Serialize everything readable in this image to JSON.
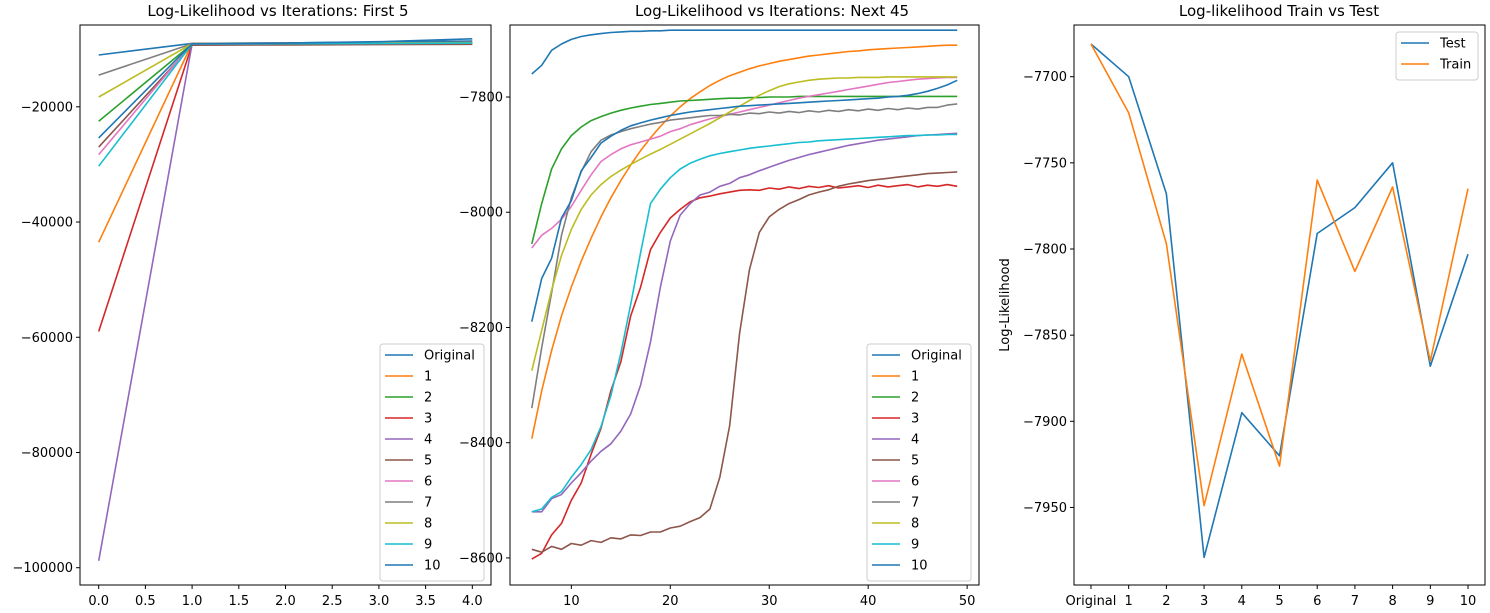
{
  "chart_data": [
    {
      "type": "line",
      "title": "Log-Likelihood vs Iterations: First 5",
      "xlabel": "",
      "ylabel": "",
      "xlim": [
        -0.2,
        4.2
      ],
      "ylim": [
        -103000,
        -5800
      ],
      "xticks": [
        "0.0",
        "0.5",
        "1.0",
        "1.5",
        "2.0",
        "2.5",
        "3.0",
        "3.5",
        "4.0"
      ],
      "yticks": [
        "-100000",
        "-80000",
        "-60000",
        "-40000",
        "-20000"
      ],
      "legend": "lower-right",
      "x": [
        0,
        1,
        2,
        3,
        4
      ],
      "series": [
        {
          "name": "Original",
          "color": "#1f77b4",
          "values": [
            -11000,
            -9000,
            -8900,
            -8750,
            -8600
          ]
        },
        {
          "name": "1",
          "color": "#ff7f0e",
          "values": [
            -43500,
            -9000,
            -8950,
            -8900,
            -8850
          ]
        },
        {
          "name": "2",
          "color": "#2ca02c",
          "values": [
            -22500,
            -9100,
            -9050,
            -9000,
            -8950
          ]
        },
        {
          "name": "3",
          "color": "#d62728",
          "values": [
            -59000,
            -9200,
            -9150,
            -9100,
            -9050
          ]
        },
        {
          "name": "4",
          "color": "#9467bd",
          "values": [
            -98800,
            -9100,
            -9050,
            -9000,
            -8950
          ]
        },
        {
          "name": "5",
          "color": "#8c564b",
          "values": [
            -27000,
            -9300,
            -9250,
            -9200,
            -9150
          ]
        },
        {
          "name": "6",
          "color": "#e377c2",
          "values": [
            -28300,
            -9100,
            -9050,
            -9000,
            -8950
          ]
        },
        {
          "name": "7",
          "color": "#7f7f7f",
          "values": [
            -14500,
            -9050,
            -9000,
            -8950,
            -8900
          ]
        },
        {
          "name": "8",
          "color": "#bcbd22",
          "values": [
            -18300,
            -9050,
            -9000,
            -8950,
            -8900
          ]
        },
        {
          "name": "9",
          "color": "#17becf",
          "values": [
            -30300,
            -9100,
            -9050,
            -9000,
            -8950
          ]
        },
        {
          "name": "10",
          "color": "#1f77b4",
          "values": [
            -25400,
            -9050,
            -8950,
            -8700,
            -8200
          ]
        }
      ]
    },
    {
      "type": "line",
      "title": "Log-Likelihood vs Iterations: Next 45",
      "xlabel": "",
      "ylabel": "",
      "xlim": [
        3.8,
        51.2
      ],
      "ylim": [
        -8647,
        -7675
      ],
      "xticks": [
        "10",
        "20",
        "30",
        "40",
        "50"
      ],
      "xtick_values": [
        10,
        20,
        30,
        40,
        50
      ],
      "yticks": [
        "-8600",
        "-8400",
        "-8200",
        "-8000",
        "-7800"
      ],
      "ytick_values": [
        -8600,
        -8400,
        -8200,
        -8000,
        -7800
      ],
      "legend": "lower-right",
      "x": [
        6,
        7,
        8,
        9,
        10,
        11,
        12,
        13,
        14,
        15,
        16,
        17,
        18,
        19,
        20,
        21,
        22,
        23,
        24,
        25,
        26,
        27,
        28,
        29,
        30,
        31,
        32,
        33,
        34,
        35,
        36,
        37,
        38,
        39,
        40,
        41,
        42,
        43,
        44,
        45,
        46,
        47,
        48,
        49
      ],
      "series": [
        {
          "name": "Original",
          "color": "#1f77b4",
          "values": [
            -7760,
            -7745,
            -7719,
            -7708,
            -7700,
            -7695,
            -7692,
            -7690,
            -7688,
            -7687,
            -7686,
            -7686,
            -7685,
            -7685,
            -7684,
            -7684,
            -7684,
            -7684,
            -7684,
            -7684,
            -7684,
            -7684,
            -7684,
            -7684,
            -7684,
            -7684,
            -7684,
            -7684,
            -7684,
            -7684,
            -7684,
            -7684,
            -7684,
            -7684,
            -7684,
            -7684,
            -7684,
            -7684,
            -7684,
            -7684,
            -7684,
            -7684,
            -7684,
            -7684
          ]
        },
        {
          "name": "1",
          "color": "#ff7f0e",
          "values": [
            -8393,
            -8310,
            -8240,
            -8180,
            -8130,
            -8085,
            -8045,
            -8008,
            -7975,
            -7945,
            -7918,
            -7893,
            -7871,
            -7851,
            -7833,
            -7817,
            -7803,
            -7791,
            -7780,
            -7771,
            -7763,
            -7757,
            -7751,
            -7746,
            -7742,
            -7738,
            -7735,
            -7732,
            -7729,
            -7727,
            -7725,
            -7723,
            -7721,
            -7720,
            -7718,
            -7717,
            -7716,
            -7715,
            -7714,
            -7713,
            -7712,
            -7711,
            -7710,
            -7710
          ]
        },
        {
          "name": "2",
          "color": "#2ca02c",
          "values": [
            -8055,
            -7985,
            -7925,
            -7890,
            -7867,
            -7852,
            -7841,
            -7834,
            -7828,
            -7823,
            -7819,
            -7816,
            -7813,
            -7811,
            -7809,
            -7807,
            -7806,
            -7805,
            -7804,
            -7803,
            -7802,
            -7802,
            -7801,
            -7801,
            -7800,
            -7800,
            -7800,
            -7799,
            -7799,
            -7799,
            -7799,
            -7799,
            -7799,
            -7799,
            -7799,
            -7799,
            -7799,
            -7799,
            -7799,
            -7799,
            -7799,
            -7799,
            -7799,
            -7799
          ]
        },
        {
          "name": "3",
          "color": "#d62728",
          "values": [
            -8602,
            -8592,
            -8560,
            -8540,
            -8500,
            -8470,
            -8420,
            -8375,
            -8310,
            -8260,
            -8180,
            -8130,
            -8065,
            -8035,
            -8010,
            -7995,
            -7982,
            -7975,
            -7972,
            -7968,
            -7965,
            -7962,
            -7961,
            -7962,
            -7958,
            -7960,
            -7956,
            -7959,
            -7955,
            -7957,
            -7954,
            -7958,
            -7956,
            -7954,
            -7957,
            -7953,
            -7956,
            -7954,
            -7952,
            -7956,
            -7953,
            -7955,
            -7952,
            -7955
          ]
        },
        {
          "name": "4",
          "color": "#9467bd",
          "values": [
            -8520,
            -8520,
            -8497,
            -8490,
            -8470,
            -8452,
            -8432,
            -8415,
            -8402,
            -8380,
            -8350,
            -8300,
            -8225,
            -8130,
            -8050,
            -8005,
            -7985,
            -7970,
            -7965,
            -7955,
            -7950,
            -7940,
            -7935,
            -7928,
            -7922,
            -7916,
            -7910,
            -7905,
            -7900,
            -7896,
            -7892,
            -7888,
            -7884,
            -7881,
            -7878,
            -7875,
            -7873,
            -7871,
            -7869,
            -7867,
            -7866,
            -7865,
            -7864,
            -7863
          ]
        },
        {
          "name": "5",
          "color": "#8c564b",
          "values": [
            -8585,
            -8590,
            -8580,
            -8585,
            -8575,
            -8578,
            -8570,
            -8573,
            -8565,
            -8567,
            -8560,
            -8561,
            -8555,
            -8555,
            -8548,
            -8545,
            -8537,
            -8530,
            -8515,
            -8460,
            -8370,
            -8210,
            -8100,
            -8035,
            -8008,
            -7995,
            -7985,
            -7978,
            -7970,
            -7965,
            -7961,
            -7955,
            -7951,
            -7948,
            -7945,
            -7943,
            -7941,
            -7939,
            -7937,
            -7935,
            -7933,
            -7932,
            -7931,
            -7930
          ]
        },
        {
          "name": "6",
          "color": "#e377c2",
          "values": [
            -8062,
            -8040,
            -8028,
            -8012,
            -7990,
            -7962,
            -7935,
            -7912,
            -7900,
            -7890,
            -7883,
            -7878,
            -7873,
            -7868,
            -7860,
            -7855,
            -7848,
            -7843,
            -7838,
            -7834,
            -7830,
            -7826,
            -7822,
            -7818,
            -7814,
            -7810,
            -7806,
            -7802,
            -7799,
            -7796,
            -7793,
            -7790,
            -7787,
            -7784,
            -7781,
            -7778,
            -7775,
            -7773,
            -7771,
            -7769,
            -7768,
            -7767,
            -7766,
            -7766
          ]
        },
        {
          "name": "7",
          "color": "#7f7f7f",
          "values": [
            -8340,
            -8235,
            -8140,
            -8040,
            -7975,
            -7930,
            -7895,
            -7875,
            -7866,
            -7860,
            -7855,
            -7851,
            -7847,
            -7844,
            -7840,
            -7838,
            -7836,
            -7834,
            -7832,
            -7832,
            -7830,
            -7831,
            -7828,
            -7829,
            -7826,
            -7828,
            -7825,
            -7827,
            -7824,
            -7826,
            -7823,
            -7825,
            -7822,
            -7824,
            -7821,
            -7823,
            -7820,
            -7822,
            -7819,
            -7821,
            -7818,
            -7818,
            -7814,
            -7812
          ]
        },
        {
          "name": "8",
          "color": "#bcbd22",
          "values": [
            -8275,
            -8205,
            -8135,
            -8075,
            -8030,
            -7995,
            -7970,
            -7952,
            -7938,
            -7927,
            -7917,
            -7908,
            -7899,
            -7891,
            -7882,
            -7873,
            -7864,
            -7855,
            -7846,
            -7836,
            -7826,
            -7816,
            -7806,
            -7797,
            -7789,
            -7782,
            -7777,
            -7774,
            -7771,
            -7769,
            -7768,
            -7767,
            -7767,
            -7766,
            -7766,
            -7766,
            -7765,
            -7765,
            -7765,
            -7765,
            -7765,
            -7765,
            -7765,
            -7765
          ]
        },
        {
          "name": "9",
          "color": "#17becf",
          "values": [
            -8520,
            -8515,
            -8495,
            -8485,
            -8460,
            -8438,
            -8412,
            -8372,
            -8318,
            -8245,
            -8160,
            -8070,
            -7985,
            -7960,
            -7940,
            -7925,
            -7915,
            -7908,
            -7902,
            -7898,
            -7895,
            -7892,
            -7889,
            -7887,
            -7885,
            -7883,
            -7881,
            -7879,
            -7878,
            -7876,
            -7875,
            -7874,
            -7873,
            -7872,
            -7871,
            -7870,
            -7869,
            -7868,
            -7867,
            -7867,
            -7866,
            -7866,
            -7865,
            -7865
          ]
        },
        {
          "name": "10",
          "color": "#1f77b4",
          "values": [
            -8190,
            -8115,
            -8080,
            -8010,
            -7980,
            -7928,
            -7905,
            -7880,
            -7868,
            -7858,
            -7850,
            -7845,
            -7840,
            -7836,
            -7832,
            -7829,
            -7826,
            -7824,
            -7822,
            -7820,
            -7818,
            -7816,
            -7815,
            -7814,
            -7813,
            -7812,
            -7811,
            -7810,
            -7809,
            -7808,
            -7807,
            -7806,
            -7805,
            -7804,
            -7803,
            -7802,
            -7800,
            -7799,
            -7797,
            -7794,
            -7790,
            -7785,
            -7779,
            -7771
          ]
        }
      ]
    },
    {
      "type": "line",
      "title": "Log-likelihood Train vs Test",
      "xlabel": "",
      "ylabel": "Log-Likelihood",
      "categories": [
        "Original",
        "1",
        "2",
        "3",
        "4",
        "5",
        "6",
        "7",
        "8",
        "9",
        "10"
      ],
      "ylim": [
        -7995,
        -7670
      ],
      "yticks": [
        "-7950",
        "-7900",
        "-7850",
        "-7800",
        "-7750",
        "-7700"
      ],
      "ytick_values": [
        -7950,
        -7900,
        -7850,
        -7800,
        -7750,
        -7700
      ],
      "legend": "upper-right",
      "series": [
        {
          "name": "Test",
          "color": "#1f77b4",
          "values": [
            -7681,
            -7700,
            -7768,
            -7979,
            -7895,
            -7920,
            -7791,
            -7776,
            -7750,
            -7868,
            -7803
          ]
        },
        {
          "name": "Train",
          "color": "#ff7f0e",
          "values": [
            -7681,
            -7721,
            -7797,
            -7949,
            -7861,
            -7926,
            -7760,
            -7813,
            -7764,
            -7865,
            -7765
          ]
        }
      ]
    }
  ]
}
